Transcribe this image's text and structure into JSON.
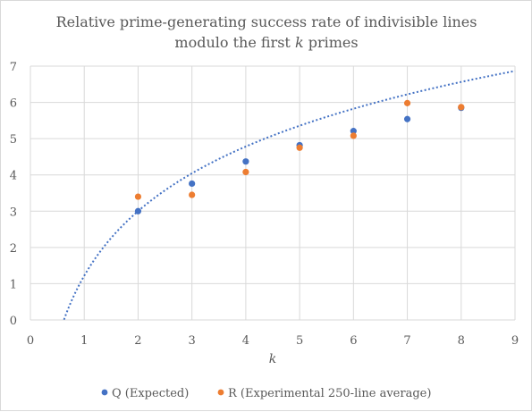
{
  "chart_data": {
    "type": "scatter",
    "title_line1": "Relative prime-generating success rate of indivisible lines",
    "title_line2_prefix": "modulo the first ",
    "title_line2_var": "k",
    "title_line2_suffix": " primes",
    "xlabel": "k",
    "ylabel": "",
    "xlim": [
      0,
      9
    ],
    "ylim": [
      0,
      7
    ],
    "xticks": [
      0,
      1,
      2,
      3,
      4,
      5,
      6,
      7,
      8,
      9
    ],
    "yticks": [
      0,
      1,
      2,
      3,
      4,
      5,
      6,
      7
    ],
    "grid": true,
    "legend_position": "bottom",
    "series": [
      {
        "name": "Q (Expected)",
        "color": "#4472c4",
        "x": [
          2,
          3,
          4,
          5,
          6,
          7,
          8
        ],
        "y": [
          3.0,
          3.76,
          4.37,
          4.82,
          5.21,
          5.54,
          5.85
        ]
      },
      {
        "name": "R (Experimental 250-line average)",
        "color": "#ed7d31",
        "x": [
          2,
          3,
          4,
          5,
          6,
          7,
          8
        ],
        "y": [
          3.4,
          3.45,
          4.08,
          4.75,
          5.08,
          5.98,
          5.87
        ]
      }
    ],
    "trendline": {
      "type": "logarithmic",
      "series": "Q (Expected)",
      "style": "dotted",
      "color": "#4472c4",
      "a": 2.57,
      "b": 1.22
    }
  }
}
